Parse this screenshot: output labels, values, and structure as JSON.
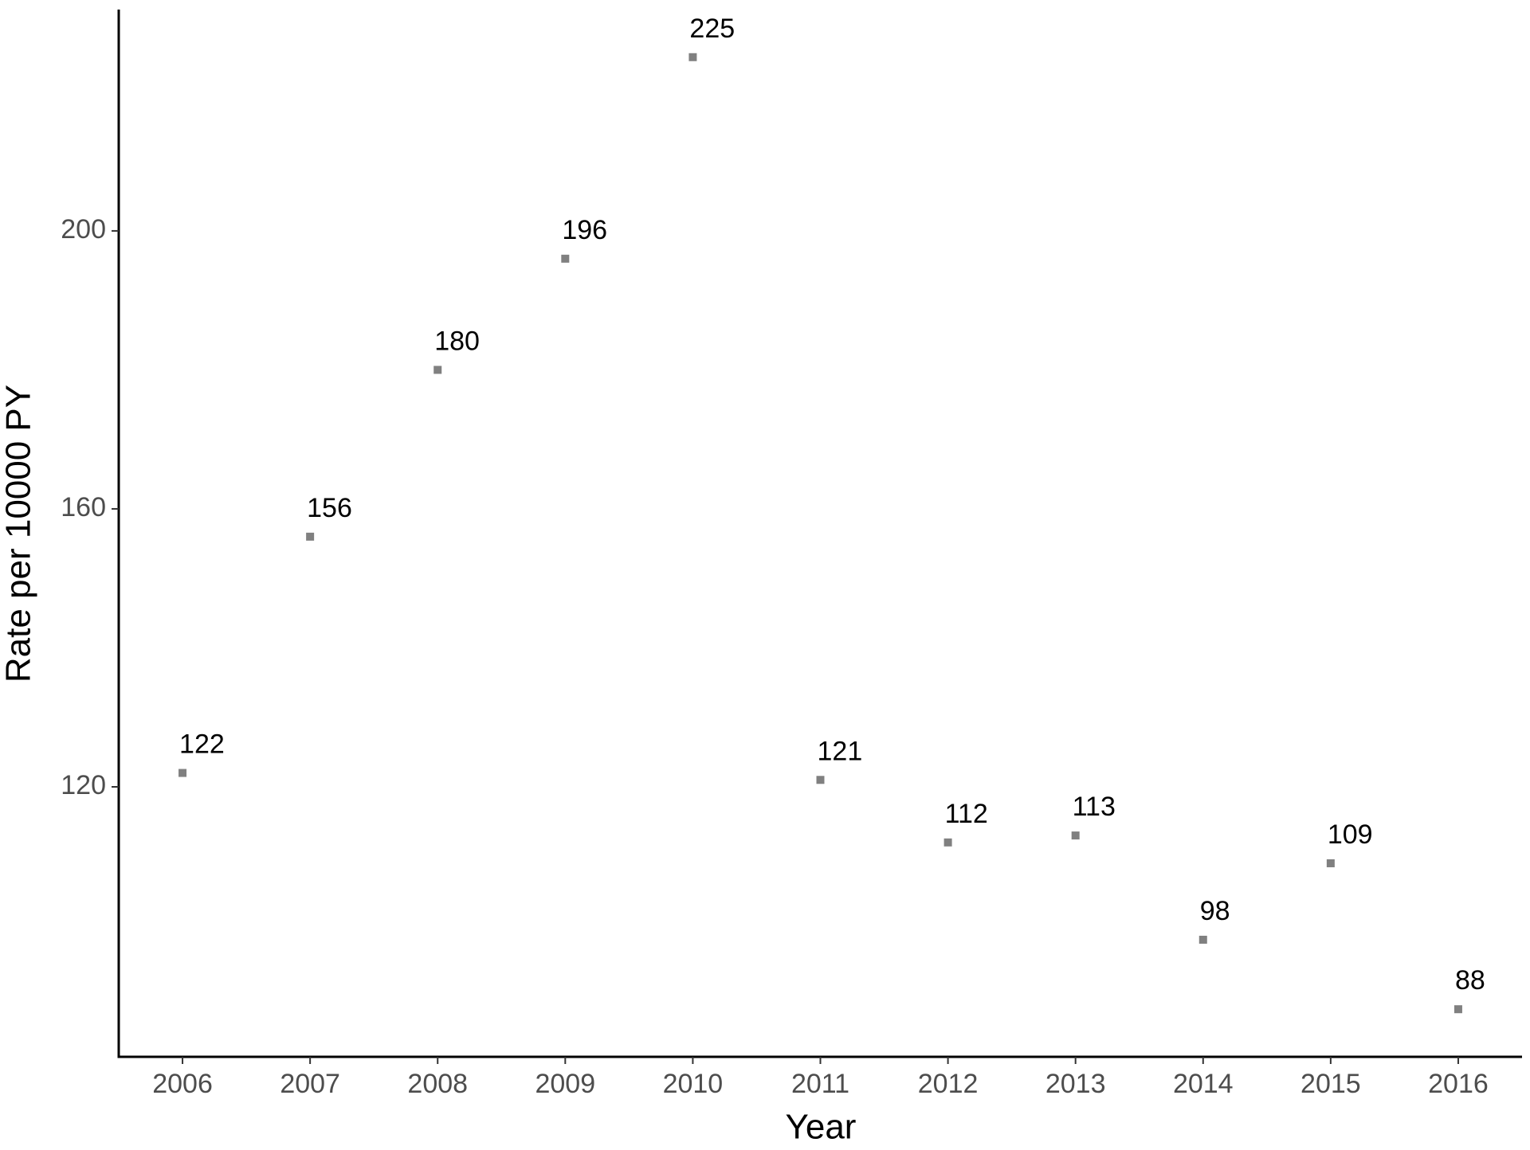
{
  "chart_data": {
    "type": "scatter",
    "x_label": "Year",
    "y_label": "Rate per 10000 PY",
    "x": [
      2006,
      2007,
      2008,
      2009,
      2010,
      2011,
      2012,
      2013,
      2014,
      2015,
      2016
    ],
    "values": [
      122,
      156,
      180,
      196,
      225,
      121,
      112,
      113,
      98,
      109,
      88
    ],
    "color": "#808080",
    "xlim": [
      2005.5,
      2016.5
    ],
    "xticks": [
      2006,
      2007,
      2008,
      2009,
      2010,
      2011,
      2012,
      2013,
      2014,
      2015,
      2016
    ],
    "ylim": [
      81.15,
      231.85
    ],
    "yticks": [
      120,
      160,
      200
    ],
    "grid": false
  }
}
